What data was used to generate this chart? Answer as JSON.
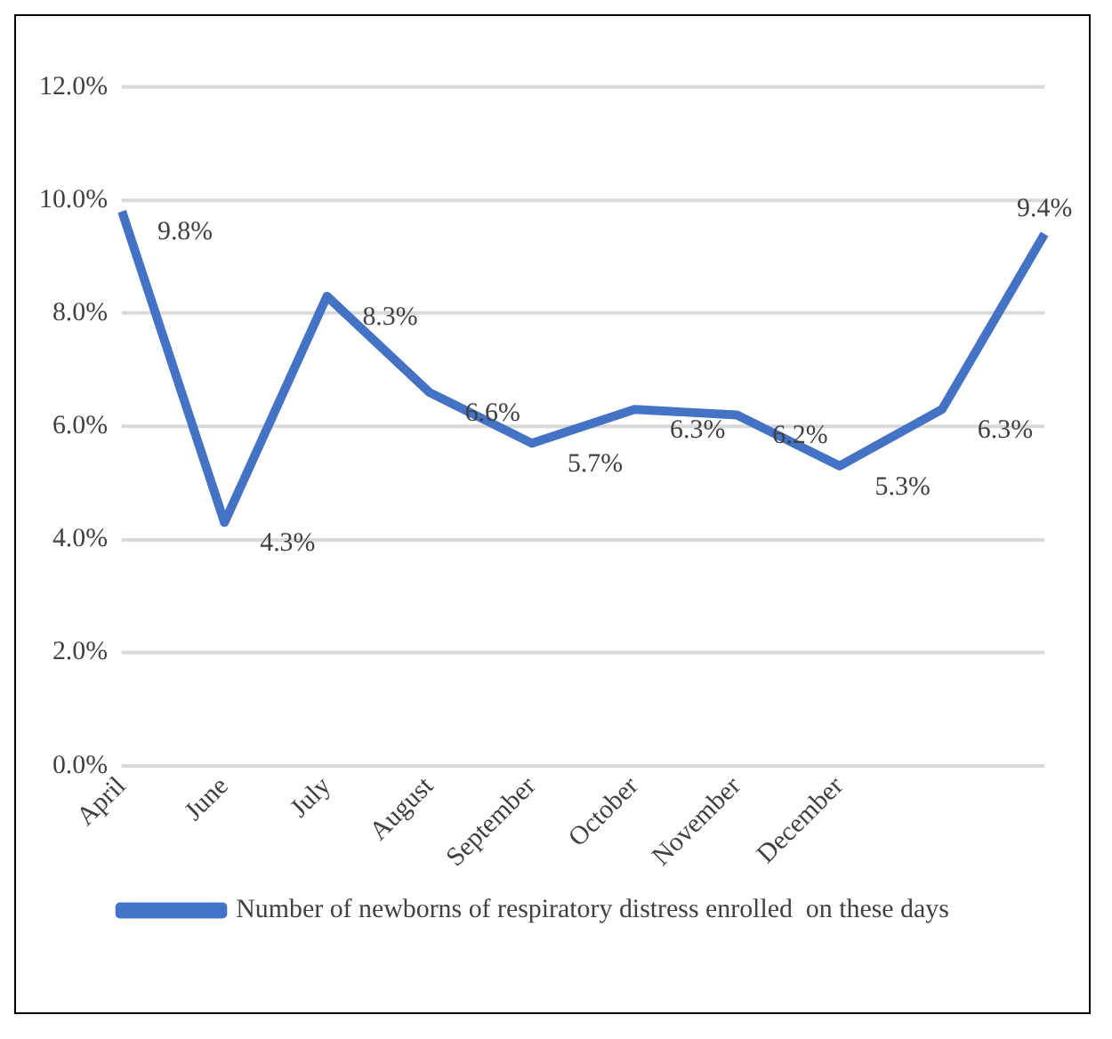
{
  "chart_data": {
    "type": "line",
    "categories": [
      "April",
      "June",
      "July",
      "August",
      "September",
      "October",
      "November",
      "December",
      null,
      null
    ],
    "series": [
      {
        "name": "Number of newborns of respiratory distress enrolled  on these days",
        "color": "#4472c4",
        "values": [
          9.8,
          4.3,
          8.3,
          6.6,
          5.7,
          6.3,
          6.2,
          5.3,
          6.3,
          9.4
        ],
        "value_labels": [
          "9.8%",
          "4.3%",
          "8.3%",
          "6.6%",
          "5.7%",
          "6.3%",
          "6.2%",
          "5.3%",
          "6.3%",
          "9.4%"
        ]
      }
    ],
    "ylim": [
      0,
      12
    ],
    "yticks": [
      {
        "value": 0,
        "label": "0.0%"
      },
      {
        "value": 2,
        "label": "2.0%"
      },
      {
        "value": 4,
        "label": "4.0%"
      },
      {
        "value": 6,
        "label": "6.0%"
      },
      {
        "value": 8,
        "label": "8.0%"
      },
      {
        "value": 10,
        "label": "10.0%"
      },
      {
        "value": 12,
        "label": "12.0%"
      }
    ],
    "grid": "y",
    "legend": "bottom",
    "marker": "none",
    "line_style": "solid"
  }
}
